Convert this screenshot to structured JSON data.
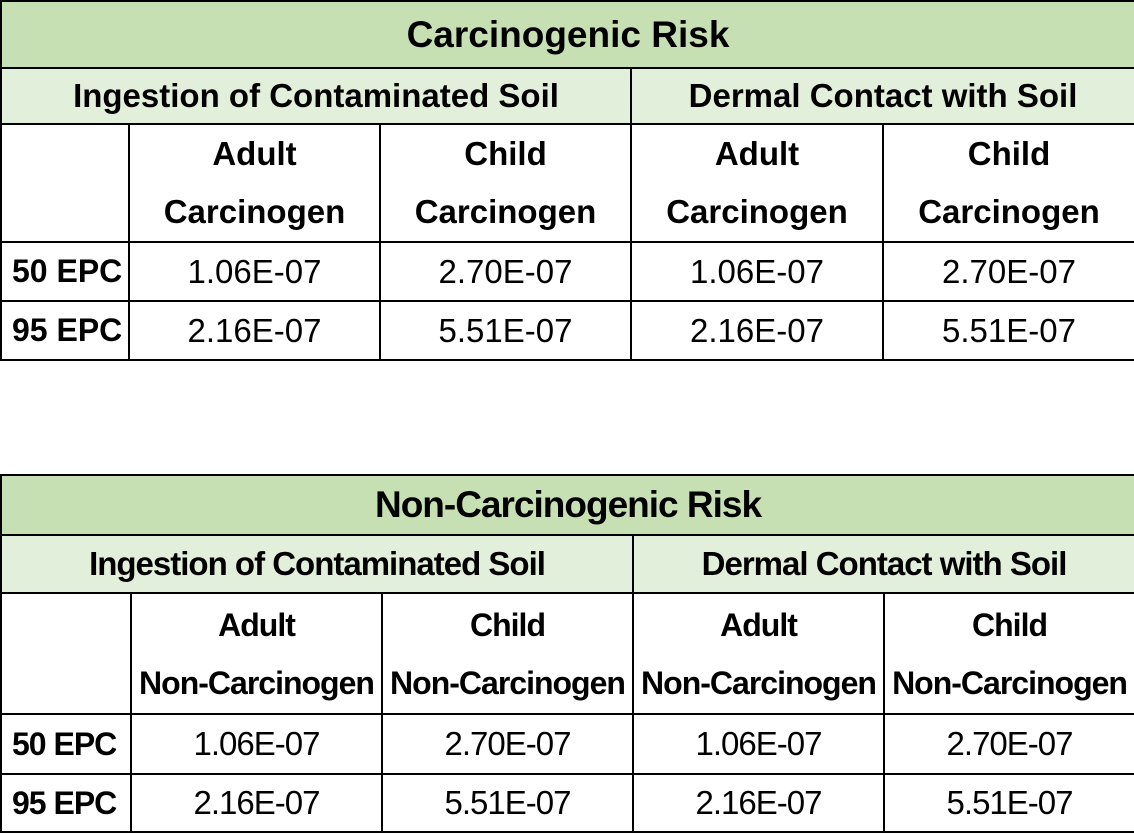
{
  "tables": [
    {
      "title": "Carcinogenic Risk",
      "routes": [
        "Ingestion of Contaminated Soil",
        "Dermal Contact with Soil"
      ],
      "columns": [
        {
          "line1": "Adult",
          "line2": "Carcinogen"
        },
        {
          "line1": "Child",
          "line2": "Carcinogen"
        },
        {
          "line1": "Adult",
          "line2": "Carcinogen"
        },
        {
          "line1": "Child",
          "line2": "Carcinogen"
        }
      ],
      "rows": [
        {
          "label": "50 EPC",
          "values": [
            "1.06E-07",
            "2.70E-07",
            "1.06E-07",
            "2.70E-07"
          ]
        },
        {
          "label": "95 EPC",
          "values": [
            "2.16E-07",
            "5.51E-07",
            "2.16E-07",
            "5.51E-07"
          ]
        }
      ]
    },
    {
      "title": "Non-Carcinogenic Risk",
      "routes": [
        "Ingestion of Contaminated Soil",
        "Dermal Contact with Soil"
      ],
      "columns": [
        {
          "line1": "Adult",
          "line2": "Non-Carcinogen"
        },
        {
          "line1": "Child",
          "line2": "Non-Carcinogen"
        },
        {
          "line1": "Adult",
          "line2": "Non-Carcinogen"
        },
        {
          "line1": "Child",
          "line2": "Non-Carcinogen"
        }
      ],
      "rows": [
        {
          "label": "50 EPC",
          "values": [
            "1.06E-07",
            "2.70E-07",
            "1.06E-07",
            "2.70E-07"
          ]
        },
        {
          "label": "95 EPC",
          "values": [
            "2.16E-07",
            "5.51E-07",
            "2.16E-07",
            "5.51E-07"
          ]
        }
      ]
    }
  ],
  "colors": {
    "title_bg": "#c6e0b4",
    "route_bg": "#e2efda",
    "border": "#000000"
  }
}
